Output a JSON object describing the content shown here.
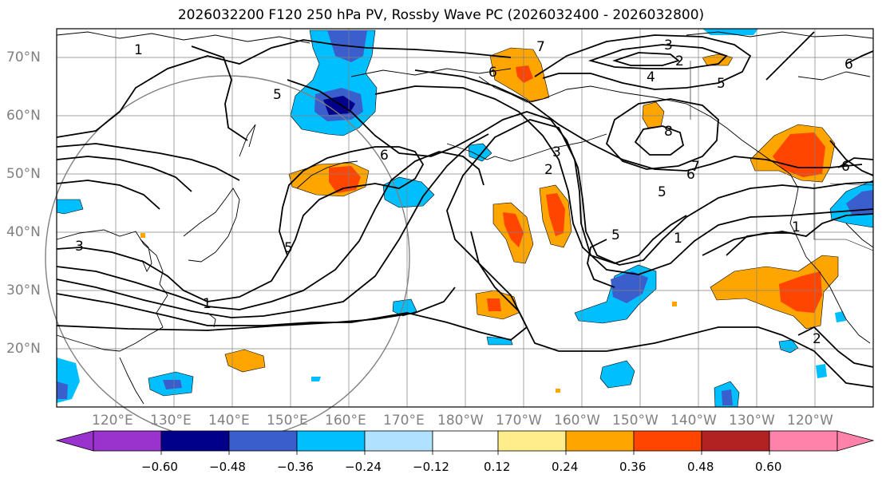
{
  "title": "2026032200 F120 250 hPa PV, Rossby Wave PC (2026032400 - 2026032800)",
  "lat_labels": [
    "70°N",
    "60°N",
    "50°N",
    "40°N",
    "30°N",
    "20°N"
  ],
  "lon_labels": [
    "120°E",
    "130°E",
    "140°E",
    "150°E",
    "160°E",
    "170°E",
    "180°W",
    "170°W",
    "160°W",
    "150°W",
    "140°W",
    "130°W",
    "120°W"
  ],
  "contour_labels": [
    "1",
    "3",
    "2",
    "7",
    "4",
    "5",
    "6",
    "8"
  ],
  "colorbar": {
    "ticks": [
      "−0.60",
      "−0.48",
      "−0.36",
      "−0.24",
      "−0.12",
      "0.12",
      "0.24",
      "0.36",
      "0.48",
      "0.60"
    ],
    "colors": [
      "#9a32cd",
      "#00008b",
      "#3a5fcd",
      "#00bfff",
      "#b0e2ff",
      "#ffffff",
      "#ffec8b",
      "#ffa500",
      "#ff4500",
      "#b22222",
      "#ff82ab"
    ]
  }
}
